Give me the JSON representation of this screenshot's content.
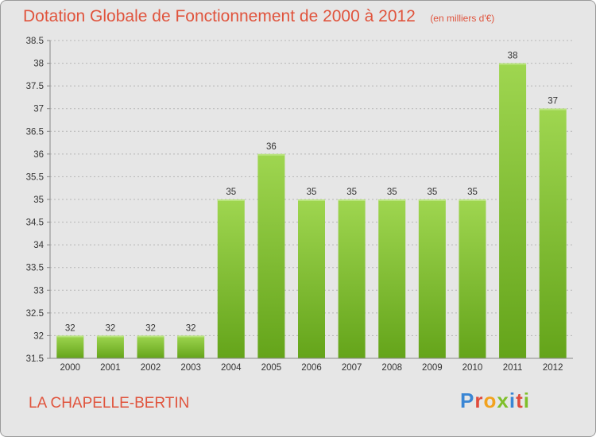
{
  "header": {
    "title": "Dotation Globale de Fonctionnement de 2000 à 2012",
    "subtitle": "(en milliers d'€)"
  },
  "footer": {
    "commune": "LA CHAPELLE-BERTIN",
    "logo_text": "Proxiti",
    "logo_colors": [
      "#3a86d4",
      "#e04b3c",
      "#f2a21e",
      "#7fbf2a",
      "#3a86d4",
      "#e04b3c",
      "#7fbf2a"
    ]
  },
  "chart_data": {
    "type": "bar",
    "categories": [
      "2000",
      "2001",
      "2002",
      "2003",
      "2004",
      "2005",
      "2006",
      "2007",
      "2008",
      "2009",
      "2010",
      "2011",
      "2012"
    ],
    "values": [
      32,
      32,
      32,
      32,
      35,
      36,
      35,
      35,
      35,
      35,
      35,
      38,
      37
    ],
    "labels": [
      "32",
      "32",
      "32",
      "32",
      "35",
      "36",
      "35",
      "35",
      "35",
      "35",
      "35",
      "38",
      "37"
    ],
    "yticks": [
      "31.5",
      "32",
      "32.5",
      "33",
      "33.5",
      "34",
      "34.5",
      "35",
      "35.5",
      "36",
      "36.5",
      "37",
      "37.5",
      "38",
      "38.5"
    ],
    "ylim": [
      31.5,
      38.5
    ],
    "grid": true,
    "bar_color": "#7fbf2a",
    "grid_color": "#b5b5b5"
  }
}
